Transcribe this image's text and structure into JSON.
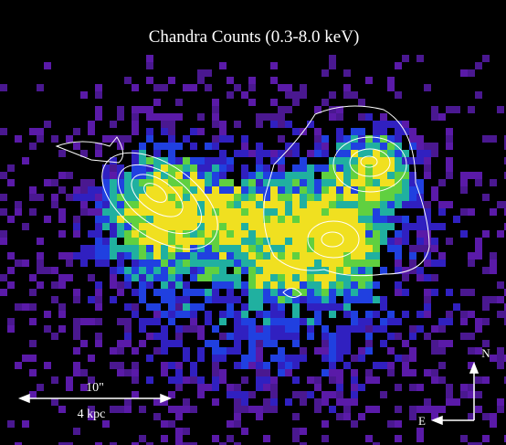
{
  "title": "Chandra Counts (0.3-8.0 keV)",
  "scale_bar": {
    "angular": "10\"",
    "physical": "4 kpc"
  },
  "compass": {
    "north": "N",
    "east": "E"
  }
}
